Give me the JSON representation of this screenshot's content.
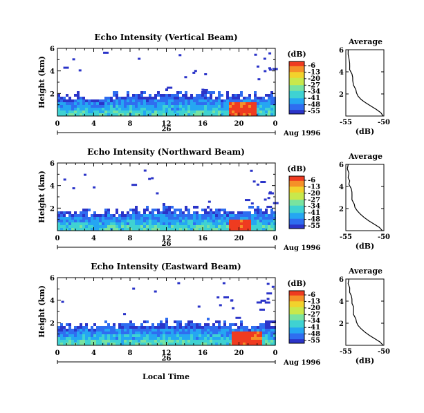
{
  "colors": {
    "scale": [
      "#2b34c8",
      "#2f6df0",
      "#25a6f2",
      "#3fd2d2",
      "#79e3a0",
      "#c8e84c",
      "#f2d22c",
      "#f59028",
      "#ef3b20"
    ],
    "axis": "#000000"
  },
  "panels": [
    {
      "title": "Echo Intensity (Vertical Beam)",
      "ylabel": "Height (km)",
      "cb_unit": "(dB)",
      "cb_ticks": [
        "-6",
        "-13",
        "-20",
        "-27",
        "-34",
        "-41",
        "-48",
        "-55"
      ],
      "avg_title": "Average",
      "avg_xlabel": "(dB)",
      "avg_xticks": [
        "-55",
        "-50"
      ],
      "date_label": "Aug 1996",
      "day_label": "26"
    },
    {
      "title": "Echo Intensity (Northward Beam)",
      "ylabel": "Height (km)",
      "cb_unit": "(dB)",
      "cb_ticks": [
        "-6",
        "-13",
        "-20",
        "-27",
        "-34",
        "-41",
        "-48",
        "-55"
      ],
      "avg_title": "Average",
      "avg_xlabel": "(dB)",
      "avg_xticks": [
        "-55",
        "-50"
      ],
      "date_label": "Aug 1996",
      "day_label": "26"
    },
    {
      "title": "Echo Intensity (Eastward Beam)",
      "ylabel": "Height (km)",
      "cb_unit": "(dB)",
      "cb_ticks": [
        "-6",
        "-13",
        "-20",
        "-27",
        "-34",
        "-41",
        "-48",
        "-55"
      ],
      "avg_title": "Average",
      "avg_xlabel": "(dB)",
      "avg_xticks": [
        "-55",
        "-50"
      ],
      "date_label": "Aug 1996",
      "day_label": "26"
    }
  ],
  "xlabel": "Local Time",
  "chart_data": [
    {
      "type": "heatmap",
      "title": "Echo Intensity (Vertical Beam)",
      "xlabel": "Local Time",
      "ylabel": "Height (km)",
      "x_ticks": [
        "0",
        "4",
        "8",
        "12",
        "16",
        "20",
        "0"
      ],
      "y_ticks": [
        "2",
        "4",
        "6"
      ],
      "xlim": [
        0,
        24
      ],
      "ylim": [
        0,
        6
      ],
      "color_range_db": [
        -55,
        -6
      ],
      "boundary_layer_top_km": [
        1.7,
        1.7,
        1.8,
        1.6,
        1.6,
        1.8,
        1.9,
        1.9,
        1.9,
        1.9,
        2.0,
        2.0,
        2.0,
        2.0,
        2.0,
        2.0,
        2.0,
        1.9,
        2.0,
        2.0,
        2.0,
        1.9,
        2.0,
        2.0,
        1.9
      ],
      "strong_echo": {
        "t_start": 18.8,
        "t_end": 21.7,
        "h_top_km": 1.4,
        "db": -6
      }
    },
    {
      "type": "line",
      "title": "Average",
      "xlabel": "(dB)",
      "ylabel": "Height (km)",
      "x_ticks": [
        "-55",
        "-50"
      ],
      "y_ticks": [
        "2",
        "4",
        "6"
      ],
      "xlim": [
        -55,
        -50
      ],
      "ylim": [
        0,
        6
      ],
      "x": [
        -50.1,
        -50.4,
        -51.0,
        -51.7,
        -52.4,
        -53.0,
        -53.4,
        -53.6,
        -53.8,
        -54.0,
        -54.2,
        -54.1,
        -54.3,
        -54.5,
        -54.6,
        -54.5,
        -54.7,
        -54.7,
        -54.8
      ],
      "y": [
        0.0,
        0.3,
        0.6,
        0.9,
        1.2,
        1.5,
        1.8,
        2.1,
        2.4,
        2.8,
        3.2,
        3.5,
        3.8,
        4.2,
        4.5,
        4.8,
        5.2,
        5.6,
        6.0
      ]
    },
    {
      "type": "heatmap",
      "title": "Echo Intensity (Northward Beam)",
      "xlabel": "Local Time",
      "ylabel": "Height (km)",
      "x_ticks": [
        "0",
        "4",
        "8",
        "12",
        "16",
        "20",
        "0"
      ],
      "y_ticks": [
        "2",
        "4",
        "6"
      ],
      "xlim": [
        0,
        24
      ],
      "ylim": [
        0,
        6
      ],
      "color_range_db": [
        -55,
        -6
      ],
      "boundary_layer_top_km": [
        1.7,
        1.8,
        1.8,
        1.7,
        1.6,
        1.8,
        1.8,
        1.9,
        1.9,
        1.9,
        1.9,
        2.0,
        2.0,
        2.0,
        1.9,
        1.9,
        2.0,
        1.9,
        1.9,
        1.9,
        1.9,
        1.9,
        2.0,
        1.9,
        1.8
      ],
      "strong_echo": {
        "t_start": 18.8,
        "t_end": 21.2,
        "h_top_km": 1.2,
        "db": -6
      }
    },
    {
      "type": "line",
      "title": "Average",
      "xlabel": "(dB)",
      "ylabel": "Height (km)",
      "x_ticks": [
        "-55",
        "-50"
      ],
      "y_ticks": [
        "2",
        "4",
        "6"
      ],
      "xlim": [
        -55,
        -50
      ],
      "ylim": [
        0,
        6
      ],
      "x": [
        -50.2,
        -50.6,
        -51.3,
        -52.0,
        -52.6,
        -53.1,
        -53.5,
        -53.8,
        -54.0,
        -54.2,
        -54.3,
        -54.2,
        -54.4,
        -54.6,
        -54.6,
        -54.7,
        -54.7,
        -54.8,
        -54.8
      ],
      "y": [
        0.0,
        0.3,
        0.6,
        0.9,
        1.2,
        1.5,
        1.8,
        2.1,
        2.4,
        2.8,
        3.2,
        3.5,
        3.8,
        4.2,
        4.5,
        4.8,
        5.2,
        5.6,
        6.0
      ]
    },
    {
      "type": "heatmap",
      "title": "Echo Intensity (Eastward Beam)",
      "xlabel": "Local Time",
      "ylabel": "Height (km)",
      "x_ticks": [
        "0",
        "4",
        "8",
        "12",
        "16",
        "20",
        "0"
      ],
      "y_ticks": [
        "2",
        "4",
        "6"
      ],
      "xlim": [
        0,
        24
      ],
      "ylim": [
        0,
        6
      ],
      "color_range_db": [
        -55,
        -6
      ],
      "boundary_layer_top_km": [
        1.8,
        1.8,
        2.0,
        1.9,
        1.9,
        2.0,
        2.0,
        2.0,
        2.0,
        2.0,
        2.0,
        2.0,
        2.0,
        2.0,
        2.0,
        2.0,
        2.0,
        2.0,
        1.9,
        1.9,
        1.8,
        1.9,
        2.1,
        2.0,
        1.9
      ],
      "strong_echo": {
        "t_start": 18.9,
        "t_end": 22.4,
        "h_top_km": 1.3,
        "db": -6
      }
    },
    {
      "type": "line",
      "title": "Average",
      "xlabel": "(dB)",
      "ylabel": "Height (km)",
      "x_ticks": [
        "-55",
        "-50"
      ],
      "y_ticks": [
        "2",
        "4",
        "6"
      ],
      "xlim": [
        -55,
        -50
      ],
      "ylim": [
        0,
        6
      ],
      "x": [
        -50.1,
        -50.5,
        -51.2,
        -51.9,
        -52.5,
        -53.0,
        -53.4,
        -53.6,
        -53.8,
        -54.0,
        -54.1,
        -54.0,
        -54.3,
        -54.2,
        -54.4,
        -54.5,
        -54.6,
        -54.7,
        -54.7
      ],
      "y": [
        0.0,
        0.3,
        0.6,
        0.9,
        1.2,
        1.5,
        1.8,
        2.1,
        2.4,
        2.8,
        3.2,
        3.5,
        3.8,
        4.2,
        4.5,
        4.8,
        5.2,
        5.6,
        6.0
      ]
    }
  ]
}
